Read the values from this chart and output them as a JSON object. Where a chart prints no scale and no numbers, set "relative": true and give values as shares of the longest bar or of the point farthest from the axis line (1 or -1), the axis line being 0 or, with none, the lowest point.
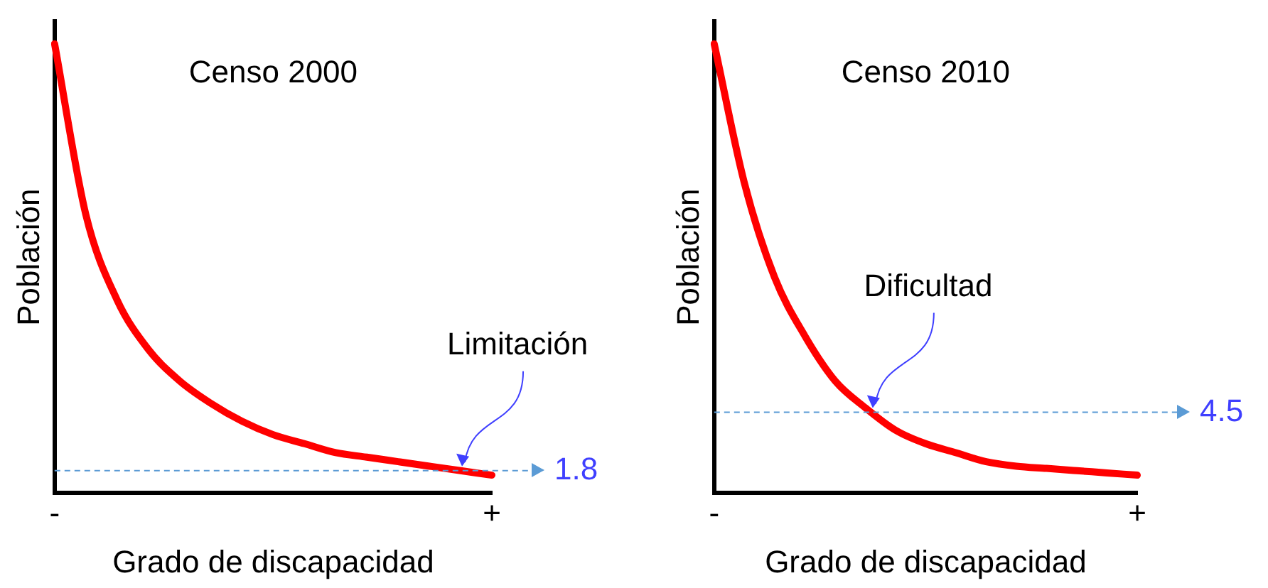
{
  "chart_data": [
    {
      "type": "line",
      "title": "Censo 2000",
      "xlabel": "Grado de discapacidad",
      "ylabel": "Población",
      "relative": true,
      "grid": false,
      "legend": false,
      "marker": "none",
      "categories": [
        "-",
        null,
        null,
        null,
        null,
        null,
        null,
        null,
        null,
        null,
        null,
        null,
        null,
        null,
        "+"
      ],
      "series": [
        {
          "color": "#ff0000",
          "values": [
            1,
            0.62,
            0.43,
            0.32,
            0.25,
            0.2,
            0.16,
            0.13,
            0.11,
            0.09,
            0.08,
            0.07,
            0.06,
            0.05,
            0.04
          ]
        }
      ],
      "ref_lines": [
        {
          "axis": "y",
          "value": 0.05,
          "color": "#5b9bd5",
          "line_style": "dashed"
        }
      ],
      "annotations": [
        "Limitación",
        "1.8"
      ]
    },
    {
      "type": "line",
      "title": "Censo 2010",
      "xlabel": "Grado de discapacidad",
      "ylabel": "Población",
      "relative": true,
      "grid": false,
      "legend": false,
      "marker": "none",
      "categories": [
        "-",
        null,
        null,
        null,
        null,
        null,
        null,
        null,
        null,
        null,
        null,
        null,
        null,
        null,
        "+"
      ],
      "series": [
        {
          "color": "#ff0000",
          "values": [
            1,
            0.69,
            0.48,
            0.35,
            0.25,
            0.19,
            0.14,
            0.11,
            0.09,
            0.07,
            0.06,
            0.055,
            0.05,
            0.045,
            0.04
          ]
        }
      ],
      "ref_lines": [
        {
          "axis": "y",
          "value": 0.18,
          "color": "#5b9bd5",
          "line_style": "dashed"
        }
      ],
      "annotations": [
        "Dificultad",
        "4.5"
      ]
    }
  ]
}
